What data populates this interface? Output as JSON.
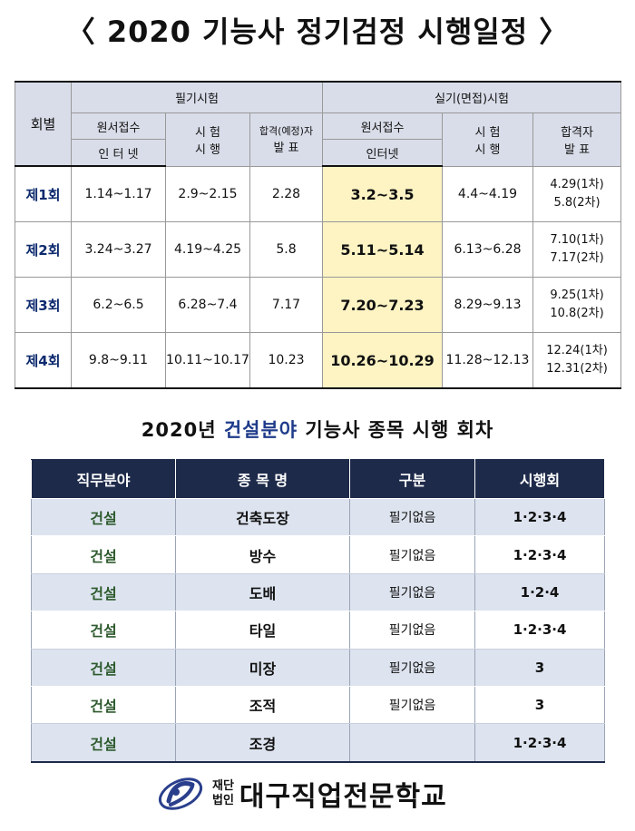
{
  "title": "〈 2020 기능사 정기검정 시행일정 〉",
  "schedule": {
    "round_header": "회별",
    "written_header": "필기시험",
    "practical_header": "실기(면접)시험",
    "written_apply": "원서접수",
    "written_apply_sub": "인 터 넷",
    "written_exam_l1": "시 험",
    "written_exam_l2": "시 행",
    "written_announce_l1": "합격(예정)자",
    "written_announce_l2": "발 표",
    "practical_apply": "원서접수",
    "practical_apply_sub": "인터넷",
    "practical_exam_l1": "시 험",
    "practical_exam_l2": "시 행",
    "practical_announce_l1": "합격자",
    "practical_announce_l2": "발 표",
    "rows": [
      {
        "round": "제1회",
        "w_apply": "1.14~1.17",
        "w_exam": "2.9~2.15",
        "w_announce": "2.28",
        "p_apply": "3.2~3.5",
        "p_exam": "4.4~4.19",
        "p_announce_1": "4.29(1차)",
        "p_announce_2": "5.8(2차)"
      },
      {
        "round": "제2회",
        "w_apply": "3.24~3.27",
        "w_exam": "4.19~4.25",
        "w_announce": "5.8",
        "p_apply": "5.11~5.14",
        "p_exam": "6.13~6.28",
        "p_announce_1": "7.10(1차)",
        "p_announce_2": "7.17(2차)"
      },
      {
        "round": "제3회",
        "w_apply": "6.2~6.5",
        "w_exam": "6.28~7.4",
        "w_announce": "7.17",
        "p_apply": "7.20~7.23",
        "p_exam": "8.29~9.13",
        "p_announce_1": "9.25(1차)",
        "p_announce_2": "10.8(2차)"
      },
      {
        "round": "제4회",
        "w_apply": "9.8~9.11",
        "w_exam": "10.11~10.17",
        "w_announce": "10.23",
        "p_apply": "10.26~10.29",
        "p_exam": "11.28~12.13",
        "p_announce_1": "12.24(1차)",
        "p_announce_2": "12.31(2차)"
      }
    ]
  },
  "subtitle": {
    "prefix": "2020년 ",
    "accent": "건설분야",
    "suffix": " 기능사 종목 시행 회차"
  },
  "trades": {
    "headers": [
      "직무분야",
      "종 목 명",
      "구분",
      "시행회"
    ],
    "rows": [
      {
        "field": "건설",
        "name": "건축도장",
        "kind": "필기없음",
        "rounds": "1·2·3·4"
      },
      {
        "field": "건설",
        "name": "방수",
        "kind": "필기없음",
        "rounds": "1·2·3·4"
      },
      {
        "field": "건설",
        "name": "도배",
        "kind": "필기없음",
        "rounds": "1·2·4"
      },
      {
        "field": "건설",
        "name": "타일",
        "kind": "필기없음",
        "rounds": "1·2·3·4"
      },
      {
        "field": "건설",
        "name": "미장",
        "kind": "필기없음",
        "rounds": "3"
      },
      {
        "field": "건설",
        "name": "조적",
        "kind": "필기없음",
        "rounds": "3"
      },
      {
        "field": "건설",
        "name": "조경",
        "kind": "",
        "rounds": "1·2·3·4"
      }
    ]
  },
  "logo": {
    "small_1": "재단",
    "small_2": "법인",
    "name": "대구직업전문학교"
  },
  "colors": {
    "header_bg": "#d9dde9",
    "highlight": "#fdf3c3",
    "navy": "#1e2a4a",
    "row_shade": "#dde4ef",
    "field_green": "#2d5a2d"
  }
}
